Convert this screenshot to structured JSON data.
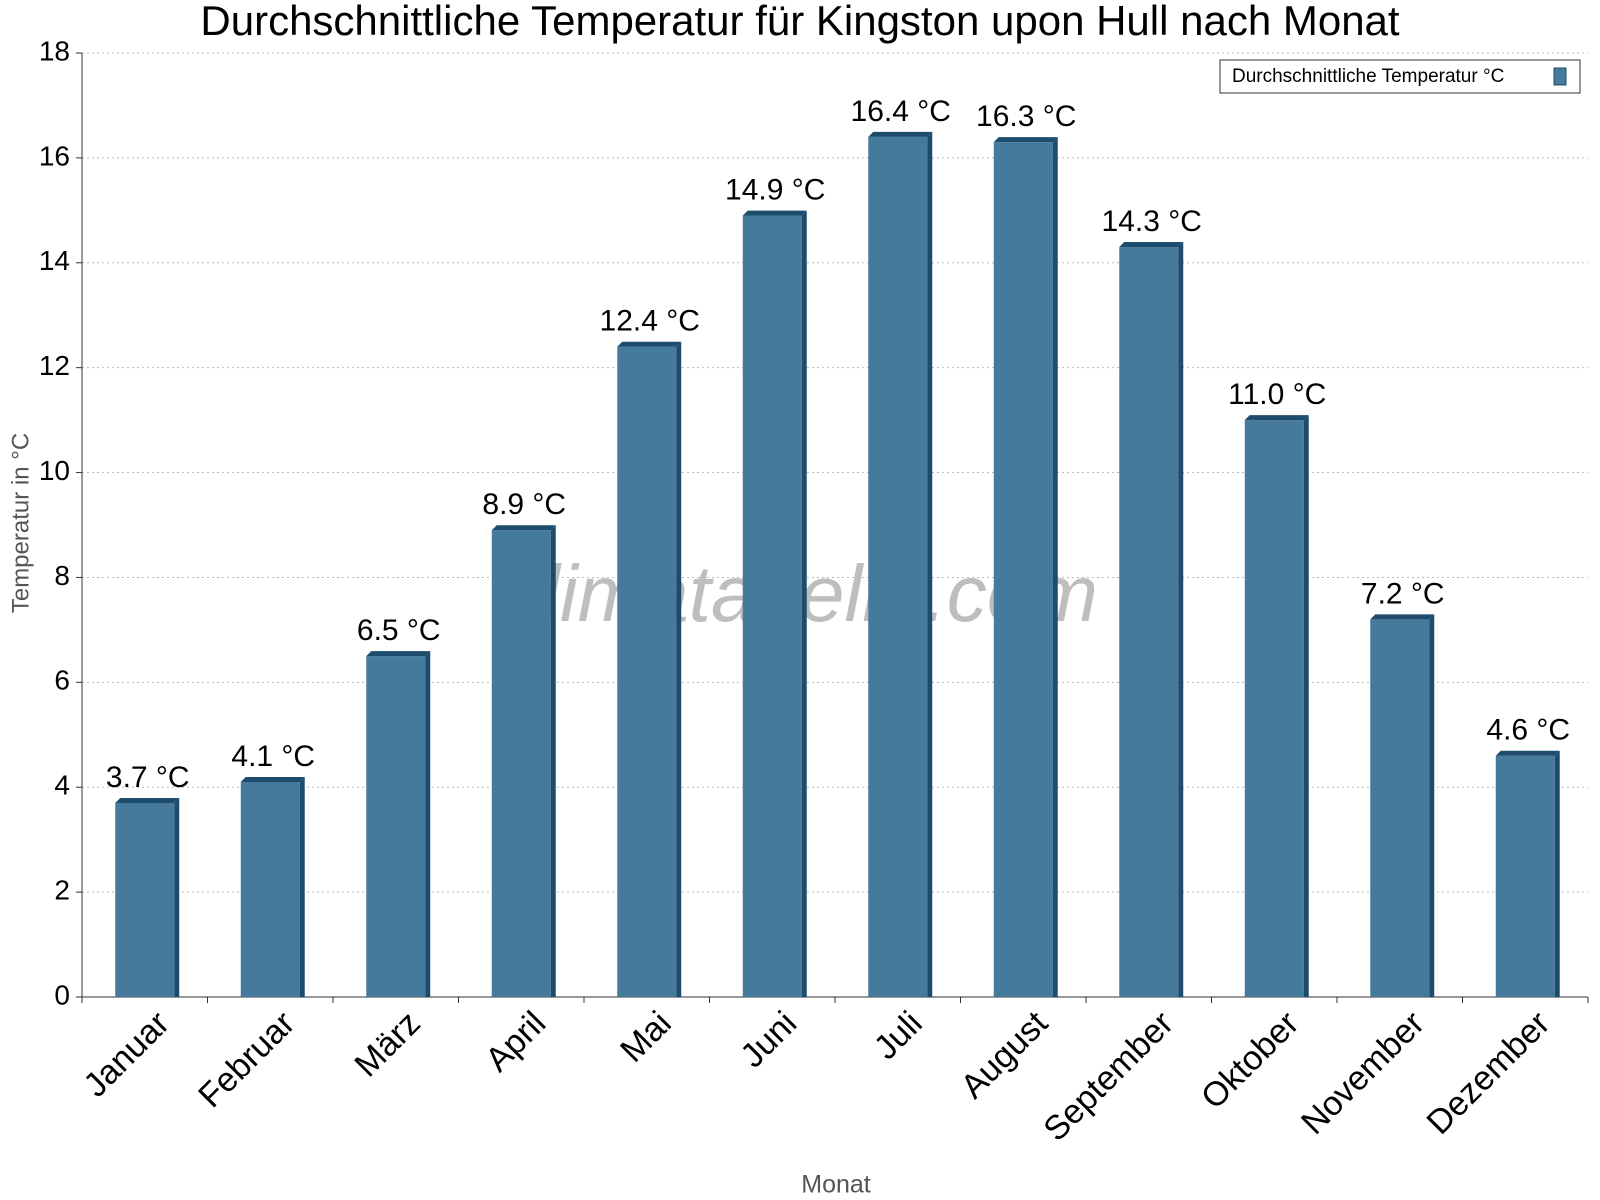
{
  "chart_data": {
    "type": "bar",
    "title": "Durchschnittliche Temperatur für Kingston upon Hull nach Monat",
    "x_label": "Monat",
    "y_label": "Temperatur in °C",
    "watermark": "klimatabelle.com",
    "categories": [
      "Januar",
      "Februar",
      "März",
      "April",
      "Mai",
      "Juni",
      "Juli",
      "August",
      "September",
      "Oktober",
      "November",
      "Dezember"
    ],
    "series": [
      {
        "name": "Durchschnittliche Temperatur °C",
        "color": "#467a9c",
        "values": [
          3.7,
          4.1,
          6.5,
          8.9,
          12.4,
          14.9,
          16.4,
          16.3,
          14.3,
          11.0,
          7.2,
          4.6
        ],
        "value_labels": [
          "3.7 °C",
          "4.1 °C",
          "6.5 °C",
          "8.9 °C",
          "12.4 °C",
          "14.9 °C",
          "16.4 °C",
          "16.3 °C",
          "14.3 °C",
          "11.0 °C",
          "7.2 °C",
          "4.6 °C"
        ]
      }
    ],
    "ylim": [
      0,
      18
    ],
    "yticks": [
      0,
      2,
      4,
      6,
      8,
      10,
      12,
      14,
      16,
      18
    ],
    "grid": true,
    "legend": "upper right"
  }
}
